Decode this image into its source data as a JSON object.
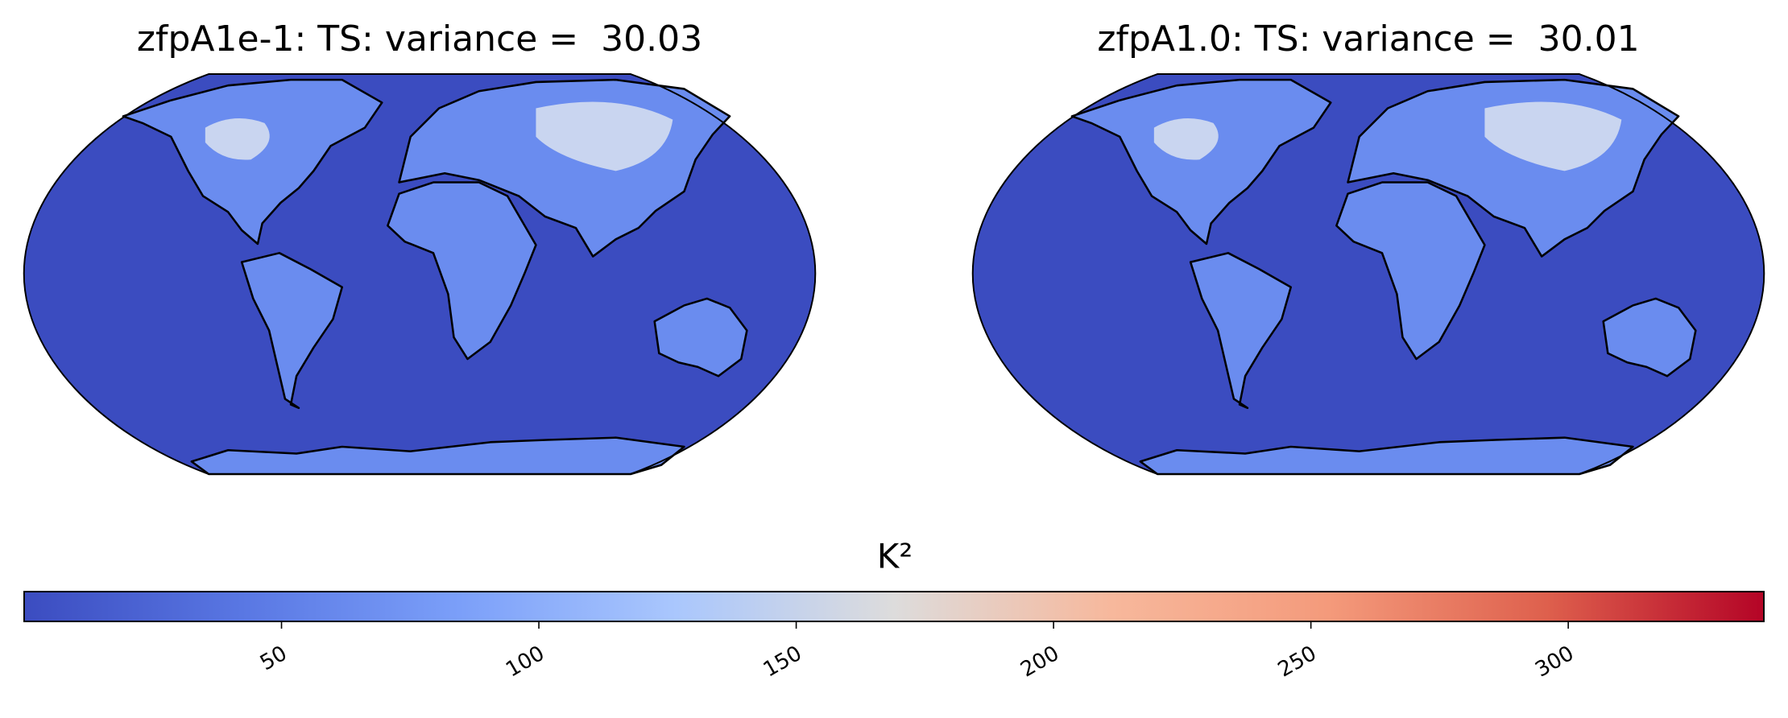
{
  "chart_data": {
    "type": "map",
    "panels": [
      {
        "title": "zfpA1e-1: TS: variance =  30.03"
      },
      {
        "title": "zfpA1.0: TS: variance =  30.01"
      }
    ],
    "colorbar": {
      "label": "K²",
      "colormap": "coolwarm",
      "lim": [
        0,
        338
      ],
      "ticks": [
        50,
        100,
        150,
        200,
        250,
        300
      ]
    }
  }
}
